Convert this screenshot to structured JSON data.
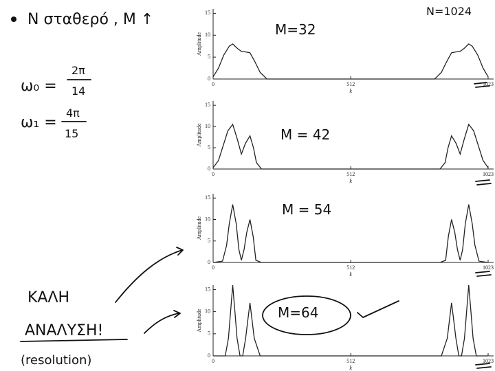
{
  "chart_data": [
    {
      "type": "line",
      "annotation": "M=32",
      "ylabel": "Amplitude",
      "xlabel": "k",
      "xlim": [
        0,
        1023
      ],
      "ylim": [
        0,
        16
      ],
      "xticks": [
        0,
        512,
        1023
      ],
      "yticks": [
        0,
        5,
        10,
        15
      ],
      "color": "#222222",
      "x": [
        0,
        20,
        40,
        60,
        73,
        90,
        105,
        120,
        137,
        155,
        175,
        200,
        512,
        824,
        849,
        869,
        887,
        904,
        919,
        934,
        951,
        964,
        984,
        1004,
        1023
      ],
      "values": [
        0.5,
        2.5,
        5.5,
        7.5,
        8,
        7,
        6.3,
        6.2,
        6,
        4,
        1.5,
        0,
        0,
        0,
        1.5,
        4,
        6,
        6.2,
        6.3,
        7,
        8,
        7.5,
        5.5,
        2.5,
        0.5
      ]
    },
    {
      "type": "line",
      "annotation": "M = 42",
      "ylabel": "Amplitude",
      "xlabel": "k",
      "xlim": [
        0,
        1023
      ],
      "ylim": [
        0,
        16
      ],
      "xticks": [
        0,
        512,
        1023
      ],
      "yticks": [
        0,
        5,
        10,
        15
      ],
      "color": "#222222",
      "x": [
        0,
        20,
        40,
        55,
        73,
        90,
        105,
        120,
        137,
        150,
        161,
        180,
        512,
        844,
        863,
        874,
        887,
        904,
        919,
        934,
        951,
        969,
        984,
        1004,
        1023
      ],
      "values": [
        0.3,
        2,
        6,
        9,
        10.5,
        7,
        3.5,
        6,
        7.8,
        5,
        1.5,
        0,
        0,
        0,
        1.5,
        5,
        7.8,
        6,
        3.5,
        7,
        10.5,
        9,
        6,
        2,
        0.3
      ]
    },
    {
      "type": "line",
      "annotation": "M = 54",
      "ylabel": "Amplitude",
      "xlabel": "k",
      "xlim": [
        0,
        1023
      ],
      "ylim": [
        0,
        16
      ],
      "xticks": [
        0,
        512,
        1023
      ],
      "yticks": [
        0,
        5,
        10,
        15
      ],
      "color": "#222222",
      "x": [
        0,
        35,
        50,
        60,
        73,
        86,
        96,
        105,
        115,
        125,
        137,
        149,
        159,
        180,
        512,
        844,
        865,
        875,
        887,
        899,
        909,
        919,
        928,
        938,
        951,
        964,
        974,
        989,
        1023
      ],
      "values": [
        0,
        0.3,
        4,
        9,
        13.5,
        9,
        3,
        0.5,
        3,
        7,
        10,
        6,
        0.5,
        0,
        0,
        0,
        0.5,
        6,
        10,
        7,
        3,
        0.5,
        3,
        9,
        13.5,
        9,
        4,
        0.3,
        0
      ]
    },
    {
      "type": "line",
      "annotation": "M=64",
      "ylabel": "Amplitude",
      "xlabel": "k",
      "xlim": [
        0,
        1023
      ],
      "ylim": [
        0,
        16
      ],
      "xticks": [
        0,
        512,
        1023
      ],
      "yticks": [
        0,
        5,
        10,
        15
      ],
      "color": "#222222",
      "x": [
        0,
        45,
        57,
        65,
        73,
        81,
        89,
        100,
        110,
        121,
        129,
        137,
        145,
        153,
        175,
        512,
        849,
        871,
        879,
        887,
        895,
        903,
        914,
        924,
        935,
        943,
        951,
        959,
        967,
        979,
        1023
      ],
      "values": [
        0,
        0,
        4,
        10,
        16,
        10,
        4,
        0,
        0,
        4,
        8,
        12,
        8,
        4,
        0,
        0,
        0,
        4,
        8,
        12,
        8,
        4,
        0,
        0,
        4,
        10,
        16,
        10,
        4,
        0,
        0
      ]
    }
  ],
  "notes": {
    "heading": "N σταθερό , M ↑",
    "n_value": "N=1024",
    "omega0": {
      "lhs": "ω₀ =",
      "num": "2π",
      "den": "14"
    },
    "omega1": {
      "lhs": "ω₁ =",
      "num": "4π",
      "den": "15"
    },
    "good_line1": "ΚΑΛΗ",
    "good_line2": "ΑΝΑΛΥΣΗ!",
    "resolution": "(resolution)"
  }
}
